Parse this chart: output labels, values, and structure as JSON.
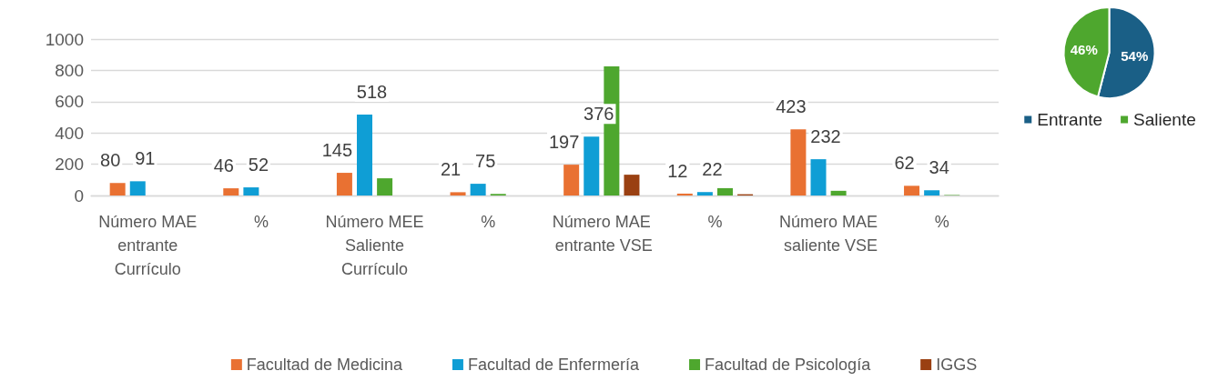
{
  "chart_data": [
    {
      "type": "bar",
      "categories": [
        "Número MAE entrante Currículo",
        "%",
        "Número MEE Saliente Currículo",
        "%",
        "Número MAE entrante VSE",
        "%",
        "Número MAE saliente VSE",
        "%"
      ],
      "series": [
        {
          "name": "Facultad de Medicina",
          "color": "#e97132",
          "values": [
            80,
            46,
            145,
            21,
            197,
            12,
            423,
            62
          ],
          "value_labels": [
            "80",
            "46",
            "145",
            "21",
            "197",
            "12",
            "423",
            "62"
          ]
        },
        {
          "name": "Facultad de Enfermería",
          "color": "#0f9ed5",
          "values": [
            91,
            52,
            518,
            75,
            376,
            22,
            232,
            34
          ],
          "value_labels": [
            "91",
            "52",
            "518",
            "75",
            "376",
            "22",
            "232",
            "34"
          ]
        },
        {
          "name": "Facultad de Psicología",
          "color": "#4ea72e",
          "values": [
            0,
            0,
            110,
            10,
            826,
            47,
            30,
            3
          ]
        },
        {
          "name": "IGGS",
          "color": "#9a4012",
          "values": [
            0,
            0,
            0,
            0,
            133,
            8,
            0,
            0
          ]
        }
      ],
      "ylim": [
        0,
        1000
      ],
      "yticks": [
        0,
        200,
        400,
        600,
        800,
        1000
      ],
      "grid": "y",
      "legend": "bottom"
    },
    {
      "type": "pie",
      "categories": [
        "Entrante",
        "Saliente"
      ],
      "values": [
        54,
        46
      ],
      "colors": [
        "#1a5f86",
        "#4ea72e"
      ],
      "value_labels": [
        "54%",
        "46%"
      ],
      "legend": "bottom"
    }
  ]
}
